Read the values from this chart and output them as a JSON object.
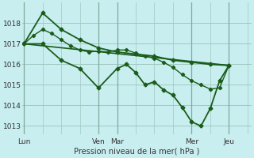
{
  "background_color": "#c8eef0",
  "plot_bg_color": "#c8eef0",
  "grid_color_h": "#a0c8c0",
  "grid_color_v": "#80aa99",
  "line_color": "#1a5c1a",
  "marker_color": "#1a5c1a",
  "xlabel": "Pression niveau de la mer( hPa )",
  "ylim": [
    1012.6,
    1019.0
  ],
  "yticks": [
    1013,
    1014,
    1015,
    1016,
    1017,
    1018
  ],
  "xtick_labels": [
    "Lun",
    "Ven",
    "Mar",
    "Mer",
    "Jeu"
  ],
  "xtick_positions": [
    0,
    4,
    5,
    9,
    11
  ],
  "vline_positions": [
    0,
    4,
    5,
    9,
    11
  ],
  "xlim": [
    -0.1,
    12.2
  ],
  "series_x": [
    [
      0,
      1,
      2,
      3,
      4,
      5,
      6,
      7,
      8,
      9,
      10,
      11
    ],
    [
      0,
      0.5,
      1,
      1.5,
      2,
      2.5,
      3,
      3.5,
      4,
      4.5,
      5,
      5.5,
      6,
      6.5,
      7,
      7.5,
      8,
      8.5,
      9,
      9.5,
      10,
      10.5,
      11
    ],
    [
      0,
      11
    ],
    [
      0,
      1,
      2,
      3,
      4,
      5,
      5.5,
      6,
      6.5,
      7,
      7.5,
      8,
      8.5,
      9,
      9.5,
      10,
      10.5,
      11
    ]
  ],
  "series_y": [
    [
      1017.0,
      1018.5,
      1017.7,
      1017.2,
      1016.8,
      1016.6,
      1016.5,
      1016.4,
      1016.2,
      1016.1,
      1016.0,
      1015.95
    ],
    [
      1017.0,
      1017.4,
      1017.7,
      1017.5,
      1017.2,
      1016.9,
      1016.7,
      1016.6,
      1016.65,
      1016.6,
      1016.7,
      1016.7,
      1016.55,
      1016.4,
      1016.3,
      1016.1,
      1015.85,
      1015.5,
      1015.2,
      1015.0,
      1014.8,
      1014.85,
      1015.95
    ],
    [
      1017.0,
      1015.95
    ],
    [
      1017.0,
      1017.0,
      1016.2,
      1015.8,
      1014.85,
      1015.8,
      1016.0,
      1015.6,
      1015.0,
      1015.15,
      1014.75,
      1014.5,
      1013.9,
      1013.2,
      1013.0,
      1013.85,
      1015.2,
      1015.95
    ]
  ],
  "series_styles": [
    {
      "lw": 1.3,
      "marker": "D",
      "ms": 2.5,
      "ls": "-",
      "zorder": 4
    },
    {
      "lw": 1.0,
      "marker": "D",
      "ms": 2.2,
      "ls": "-",
      "zorder": 3
    },
    {
      "lw": 1.2,
      "marker": null,
      "ms": 0,
      "ls": "-",
      "zorder": 2
    },
    {
      "lw": 1.3,
      "marker": "D",
      "ms": 2.5,
      "ls": "-",
      "zorder": 4
    }
  ]
}
